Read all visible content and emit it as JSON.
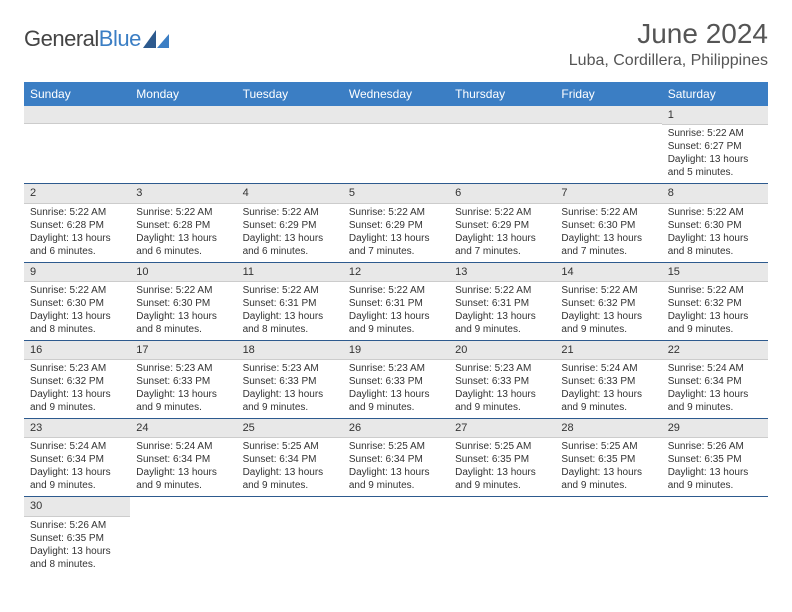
{
  "logo": {
    "text1": "General",
    "text2": "Blue"
  },
  "title": "June 2024",
  "location": "Luba, Cordillera, Philippines",
  "colors": {
    "header_bg": "#3b7ec4",
    "header_fg": "#ffffff",
    "daynum_bg": "#e8e8e8",
    "row_border": "#2d5a8e",
    "logo_blue": "#3b7ec4"
  },
  "day_headers": [
    "Sunday",
    "Monday",
    "Tuesday",
    "Wednesday",
    "Thursday",
    "Friday",
    "Saturday"
  ],
  "weeks": [
    [
      null,
      null,
      null,
      null,
      null,
      null,
      {
        "n": "1",
        "sr": "5:22 AM",
        "ss": "6:27 PM",
        "dl": "13 hours and 5 minutes."
      }
    ],
    [
      {
        "n": "2",
        "sr": "5:22 AM",
        "ss": "6:28 PM",
        "dl": "13 hours and 6 minutes."
      },
      {
        "n": "3",
        "sr": "5:22 AM",
        "ss": "6:28 PM",
        "dl": "13 hours and 6 minutes."
      },
      {
        "n": "4",
        "sr": "5:22 AM",
        "ss": "6:29 PM",
        "dl": "13 hours and 6 minutes."
      },
      {
        "n": "5",
        "sr": "5:22 AM",
        "ss": "6:29 PM",
        "dl": "13 hours and 7 minutes."
      },
      {
        "n": "6",
        "sr": "5:22 AM",
        "ss": "6:29 PM",
        "dl": "13 hours and 7 minutes."
      },
      {
        "n": "7",
        "sr": "5:22 AM",
        "ss": "6:30 PM",
        "dl": "13 hours and 7 minutes."
      },
      {
        "n": "8",
        "sr": "5:22 AM",
        "ss": "6:30 PM",
        "dl": "13 hours and 8 minutes."
      }
    ],
    [
      {
        "n": "9",
        "sr": "5:22 AM",
        "ss": "6:30 PM",
        "dl": "13 hours and 8 minutes."
      },
      {
        "n": "10",
        "sr": "5:22 AM",
        "ss": "6:30 PM",
        "dl": "13 hours and 8 minutes."
      },
      {
        "n": "11",
        "sr": "5:22 AM",
        "ss": "6:31 PM",
        "dl": "13 hours and 8 minutes."
      },
      {
        "n": "12",
        "sr": "5:22 AM",
        "ss": "6:31 PM",
        "dl": "13 hours and 9 minutes."
      },
      {
        "n": "13",
        "sr": "5:22 AM",
        "ss": "6:31 PM",
        "dl": "13 hours and 9 minutes."
      },
      {
        "n": "14",
        "sr": "5:22 AM",
        "ss": "6:32 PM",
        "dl": "13 hours and 9 minutes."
      },
      {
        "n": "15",
        "sr": "5:22 AM",
        "ss": "6:32 PM",
        "dl": "13 hours and 9 minutes."
      }
    ],
    [
      {
        "n": "16",
        "sr": "5:23 AM",
        "ss": "6:32 PM",
        "dl": "13 hours and 9 minutes."
      },
      {
        "n": "17",
        "sr": "5:23 AM",
        "ss": "6:33 PM",
        "dl": "13 hours and 9 minutes."
      },
      {
        "n": "18",
        "sr": "5:23 AM",
        "ss": "6:33 PM",
        "dl": "13 hours and 9 minutes."
      },
      {
        "n": "19",
        "sr": "5:23 AM",
        "ss": "6:33 PM",
        "dl": "13 hours and 9 minutes."
      },
      {
        "n": "20",
        "sr": "5:23 AM",
        "ss": "6:33 PM",
        "dl": "13 hours and 9 minutes."
      },
      {
        "n": "21",
        "sr": "5:24 AM",
        "ss": "6:33 PM",
        "dl": "13 hours and 9 minutes."
      },
      {
        "n": "22",
        "sr": "5:24 AM",
        "ss": "6:34 PM",
        "dl": "13 hours and 9 minutes."
      }
    ],
    [
      {
        "n": "23",
        "sr": "5:24 AM",
        "ss": "6:34 PM",
        "dl": "13 hours and 9 minutes."
      },
      {
        "n": "24",
        "sr": "5:24 AM",
        "ss": "6:34 PM",
        "dl": "13 hours and 9 minutes."
      },
      {
        "n": "25",
        "sr": "5:25 AM",
        "ss": "6:34 PM",
        "dl": "13 hours and 9 minutes."
      },
      {
        "n": "26",
        "sr": "5:25 AM",
        "ss": "6:34 PM",
        "dl": "13 hours and 9 minutes."
      },
      {
        "n": "27",
        "sr": "5:25 AM",
        "ss": "6:35 PM",
        "dl": "13 hours and 9 minutes."
      },
      {
        "n": "28",
        "sr": "5:25 AM",
        "ss": "6:35 PM",
        "dl": "13 hours and 9 minutes."
      },
      {
        "n": "29",
        "sr": "5:26 AM",
        "ss": "6:35 PM",
        "dl": "13 hours and 9 minutes."
      }
    ],
    [
      {
        "n": "30",
        "sr": "5:26 AM",
        "ss": "6:35 PM",
        "dl": "13 hours and 8 minutes."
      },
      null,
      null,
      null,
      null,
      null,
      null
    ]
  ],
  "labels": {
    "sunrise": "Sunrise: ",
    "sunset": "Sunset: ",
    "daylight": "Daylight: "
  }
}
